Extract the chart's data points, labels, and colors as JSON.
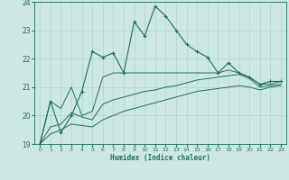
{
  "xlabel": "Humidex (Indice chaleur)",
  "xlim": [
    -0.5,
    23.5
  ],
  "ylim": [
    19,
    24
  ],
  "yticks": [
    19,
    20,
    21,
    22,
    23,
    24
  ],
  "xticks": [
    0,
    1,
    2,
    3,
    4,
    5,
    6,
    7,
    8,
    9,
    10,
    11,
    12,
    13,
    14,
    15,
    16,
    17,
    18,
    19,
    20,
    21,
    22,
    23
  ],
  "bg_color": "#cce8e2",
  "line_color": "#1f6f5e",
  "grid_color": "#b0d4ce",
  "line1_x": [
    0,
    1,
    2,
    3,
    4,
    5,
    6,
    7,
    8,
    9,
    10,
    11,
    12,
    13,
    14,
    15,
    16,
    17,
    18,
    19,
    20,
    21,
    22,
    23
  ],
  "line1_y": [
    19.0,
    20.5,
    19.4,
    20.0,
    20.85,
    22.25,
    22.05,
    22.2,
    21.5,
    23.3,
    22.8,
    23.85,
    23.5,
    23.0,
    22.5,
    22.25,
    22.05,
    21.5,
    21.85,
    21.5,
    21.35,
    21.1,
    21.2,
    21.2
  ],
  "line2_x": [
    0,
    1,
    2,
    3,
    4,
    5,
    6,
    7,
    8,
    9,
    10,
    11,
    12,
    13,
    14,
    15,
    16,
    17,
    18,
    19,
    20,
    21,
    22,
    23
  ],
  "line2_y": [
    19.0,
    20.5,
    20.25,
    21.0,
    20.0,
    20.15,
    21.35,
    21.5,
    21.5,
    21.5,
    21.5,
    21.5,
    21.5,
    21.5,
    21.5,
    21.5,
    21.5,
    21.5,
    21.6,
    21.5,
    21.35,
    21.1,
    21.1,
    21.2
  ],
  "line3_x": [
    0,
    1,
    2,
    3,
    4,
    5,
    6,
    7,
    8,
    9,
    10,
    11,
    12,
    13,
    14,
    15,
    16,
    17,
    18,
    19,
    20,
    21,
    22,
    23
  ],
  "line3_y": [
    19.0,
    19.6,
    19.7,
    20.1,
    19.95,
    19.85,
    20.4,
    20.55,
    20.65,
    20.75,
    20.85,
    20.9,
    21.0,
    21.05,
    21.15,
    21.25,
    21.3,
    21.35,
    21.4,
    21.45,
    21.3,
    21.0,
    21.05,
    21.1
  ],
  "line4_x": [
    0,
    1,
    2,
    3,
    4,
    5,
    6,
    7,
    8,
    9,
    10,
    11,
    12,
    13,
    14,
    15,
    16,
    17,
    18,
    19,
    20,
    21,
    22,
    23
  ],
  "line4_y": [
    19.0,
    19.35,
    19.5,
    19.7,
    19.65,
    19.6,
    19.85,
    20.0,
    20.15,
    20.25,
    20.35,
    20.45,
    20.55,
    20.65,
    20.75,
    20.85,
    20.9,
    20.95,
    21.0,
    21.05,
    21.0,
    20.9,
    21.0,
    21.05
  ]
}
